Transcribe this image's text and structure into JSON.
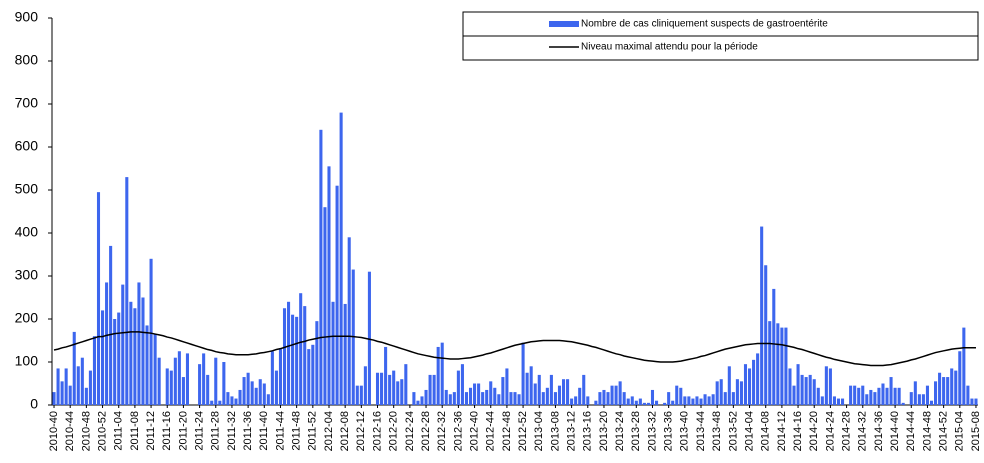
{
  "chart_data": {
    "type": "bar",
    "categories": [
      "2010-40",
      null,
      null,
      null,
      "2010-44",
      null,
      null,
      null,
      "2010-48",
      null,
      null,
      null,
      "2010-52",
      null,
      null,
      null,
      "2011-04",
      null,
      null,
      null,
      "2011-08",
      null,
      null,
      null,
      "2011-12",
      null,
      null,
      null,
      "2011-16",
      null,
      null,
      null,
      "2011-20",
      null,
      null,
      null,
      "2011-24",
      null,
      null,
      null,
      "2011-28",
      null,
      null,
      null,
      "2011-32",
      null,
      null,
      null,
      "2011-36",
      null,
      null,
      null,
      "2011-40",
      null,
      null,
      null,
      "2011-44",
      null,
      null,
      null,
      "2011-48",
      null,
      null,
      null,
      "2011-52",
      null,
      null,
      null,
      "2012-04",
      null,
      null,
      null,
      "2012-08",
      null,
      null,
      null,
      "2012-12",
      null,
      null,
      null,
      "2012-16",
      null,
      null,
      null,
      "2012-20",
      null,
      null,
      null,
      "2012-24",
      null,
      null,
      null,
      "2012-28",
      null,
      null,
      null,
      "2012-32",
      null,
      null,
      null,
      "2012-36",
      null,
      null,
      null,
      "2012-40",
      null,
      null,
      null,
      "2012-44",
      null,
      null,
      null,
      "2012-48",
      null,
      null,
      null,
      "2012-52",
      null,
      null,
      null,
      "2013-04",
      null,
      null,
      null,
      "2013-08",
      null,
      null,
      null,
      "2013-12",
      null,
      null,
      null,
      "2013-16",
      null,
      null,
      null,
      "2013-20",
      null,
      null,
      null,
      "2013-24",
      null,
      null,
      null,
      "2013-28",
      null,
      null,
      null,
      "2013-32",
      null,
      null,
      null,
      "2013-36",
      null,
      null,
      null,
      "2013-40",
      null,
      null,
      null,
      "2013-44",
      null,
      null,
      null,
      "2013-48",
      null,
      null,
      null,
      "2013-52",
      null,
      null,
      null,
      "2014-04",
      null,
      null,
      null,
      "2014-08",
      null,
      null,
      null,
      "2014-12",
      null,
      null,
      null,
      "2014-16",
      null,
      null,
      null,
      "2014-20",
      null,
      null,
      null,
      "2014-24",
      null,
      null,
      null,
      "2014-28",
      null,
      null,
      null,
      "2014-32",
      null,
      null,
      null,
      "2014-36",
      null,
      null,
      null,
      "2014-40",
      null,
      null,
      null,
      "2014-44",
      null,
      null,
      null,
      "2014-48",
      null,
      null,
      null,
      "2014-52",
      null,
      null,
      null,
      "2015-04",
      null,
      null,
      null,
      "2015-08"
    ],
    "series": [
      {
        "name": "Nombre de cas cliniquement suspects de gastroentérite",
        "type": "bar",
        "color": "#3d66ee",
        "values": [
          30,
          85,
          55,
          85,
          45,
          170,
          90,
          110,
          40,
          80,
          160,
          495,
          220,
          285,
          370,
          200,
          215,
          280,
          530,
          240,
          225,
          285,
          250,
          185,
          340,
          165,
          110,
          0,
          85,
          80,
          110,
          125,
          65,
          120,
          0,
          0,
          95,
          120,
          70,
          10,
          110,
          10,
          100,
          30,
          20,
          15,
          35,
          65,
          75,
          55,
          40,
          60,
          50,
          25,
          125,
          80,
          130,
          225,
          240,
          210,
          205,
          260,
          230,
          130,
          140,
          195,
          640,
          460,
          555,
          240,
          510,
          680,
          235,
          390,
          315,
          45,
          45,
          90,
          310,
          0,
          75,
          75,
          135,
          70,
          80,
          55,
          60,
          95,
          0,
          30,
          10,
          20,
          35,
          70,
          70,
          135,
          145,
          35,
          25,
          30,
          80,
          95,
          30,
          40,
          50,
          50,
          30,
          35,
          55,
          40,
          25,
          65,
          85,
          30,
          30,
          25,
          145,
          75,
          90,
          50,
          70,
          30,
          40,
          70,
          30,
          45,
          60,
          60,
          15,
          20,
          40,
          70,
          20,
          0,
          10,
          30,
          35,
          30,
          45,
          45,
          55,
          30,
          15,
          20,
          10,
          15,
          5,
          5,
          35,
          10,
          0,
          5,
          30,
          10,
          45,
          40,
          20,
          20,
          15,
          20,
          15,
          25,
          20,
          25,
          55,
          60,
          30,
          90,
          30,
          60,
          55,
          95,
          85,
          105,
          120,
          415,
          325,
          195,
          270,
          190,
          180,
          180,
          85,
          45,
          95,
          70,
          65,
          70,
          60,
          40,
          20,
          90,
          85,
          20,
          15,
          15,
          0,
          45,
          45,
          40,
          45,
          25,
          35,
          30,
          40,
          50,
          40,
          65,
          40,
          40,
          5,
          0,
          30,
          55,
          25,
          25,
          45,
          10,
          55,
          75,
          65,
          65,
          85,
          80,
          125,
          180,
          45,
          15,
          15
        ]
      },
      {
        "name": "Niveau maximal attendu pour la période",
        "type": "line",
        "color": "#000000",
        "values": [
          128,
          130,
          133,
          135,
          138,
          141,
          144,
          147,
          150,
          153,
          156,
          159,
          159,
          162,
          164,
          166,
          167,
          168,
          169,
          170,
          170,
          170,
          169,
          168,
          167,
          165,
          163,
          161,
          158,
          156,
          153,
          150,
          147,
          144,
          141,
          138,
          135,
          132,
          129,
          127,
          124,
          122,
          121,
          119,
          118,
          117,
          117,
          117,
          117,
          118,
          119,
          121,
          122,
          124,
          126,
          129,
          131,
          134,
          137,
          140,
          143,
          146,
          148,
          151,
          153,
          155,
          157,
          158,
          159,
          160,
          160,
          160,
          160,
          160,
          159,
          158,
          157,
          155,
          153,
          151,
          148,
          146,
          143,
          140,
          137,
          134,
          131,
          128,
          125,
          122,
          119,
          117,
          115,
          113,
          111,
          110,
          109,
          108,
          107,
          107,
          107,
          108,
          109,
          110,
          112,
          114,
          116,
          119,
          121,
          124,
          127,
          130,
          133,
          136,
          139,
          141,
          143,
          145,
          147,
          148,
          149,
          150,
          150,
          150,
          150,
          150,
          149,
          148,
          147,
          145,
          143,
          141,
          139,
          136,
          134,
          131,
          128,
          125,
          122,
          119,
          117,
          114,
          112,
          110,
          108,
          106,
          104,
          103,
          102,
          101,
          100,
          100,
          100,
          100,
          101,
          102,
          104,
          106,
          108,
          110,
          113,
          115,
          118,
          121,
          124,
          127,
          130,
          132,
          134,
          136,
          138,
          140,
          141,
          142,
          143,
          143,
          143,
          143,
          142,
          141,
          140,
          138,
          136,
          134,
          131,
          129,
          126,
          123,
          120,
          117,
          114,
          111,
          109,
          106,
          104,
          102,
          100,
          98,
          96,
          95,
          94,
          93,
          92,
          92,
          92,
          92,
          93,
          94,
          96,
          98,
          100,
          102,
          105,
          107,
          110,
          113,
          116,
          119,
          122,
          124,
          126,
          128,
          130,
          131,
          132,
          133,
          133,
          133,
          133
        ]
      }
    ],
    "ylim": [
      0,
      900
    ],
    "yticks": [
      0,
      100,
      200,
      300,
      400,
      500,
      600,
      700,
      800,
      900
    ],
    "grid": false
  }
}
